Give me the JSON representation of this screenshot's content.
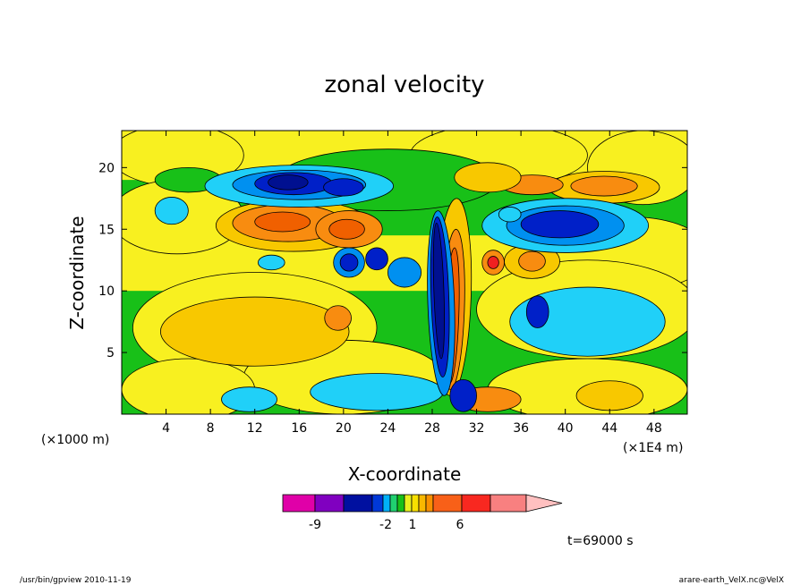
{
  "chart_data": {
    "type": "heatmap",
    "title": "zonal velocity",
    "xlabel": "X-coordinate",
    "ylabel": "Z-coordinate",
    "x_unit": "(×1000 m)",
    "x_unit_secondary": "(×1E4 m)",
    "xlim": [
      0,
      51
    ],
    "ylim": [
      0,
      23
    ],
    "x_ticks": [
      4,
      8,
      12,
      16,
      20,
      24,
      28,
      32,
      36,
      40,
      44,
      48
    ],
    "y_ticks": [
      5,
      10,
      15,
      20
    ],
    "colorbar": {
      "colors": [
        "#e000a8",
        "#8000c0",
        "#0010a0",
        "#0038d8",
        "#00b0f8",
        "#20d070",
        "#18c018",
        "#e8f020",
        "#f8e000",
        "#f8b800",
        "#f89000",
        "#f86018",
        "#f82820",
        "#f88080",
        "#ffc0c0"
      ],
      "tick_labels": [
        "-9",
        "-2",
        "1",
        "6"
      ],
      "extend": "max"
    },
    "contour_levels_shown": [
      "-9",
      "-2",
      "1",
      "6"
    ],
    "field_features": [
      {
        "x": 15,
        "z": 18.5,
        "sign": "negative",
        "value": -9
      },
      {
        "x": 44,
        "z": 18.6,
        "sign": "positive",
        "value": 6
      },
      {
        "x": 15,
        "z": 15.5,
        "sign": "positive",
        "value": 6
      },
      {
        "x": 40,
        "z": 15.3,
        "sign": "negative",
        "value": -9
      },
      {
        "x": 29,
        "z": 9.0,
        "sign": "negative",
        "value": -9
      },
      {
        "x": 29.8,
        "z": 9.0,
        "sign": "positive",
        "value": 6
      },
      {
        "x": 12,
        "z": 7.0,
        "sign": "positive",
        "value": 1
      },
      {
        "x": 42,
        "z": 7.5,
        "sign": "negative",
        "value": -2
      }
    ],
    "annotation_time": "t=69000 s"
  },
  "footer": {
    "left": "/usr/bin/gpview   2010-11-19",
    "right": "arare-earth_VelX.nc@VelX"
  }
}
